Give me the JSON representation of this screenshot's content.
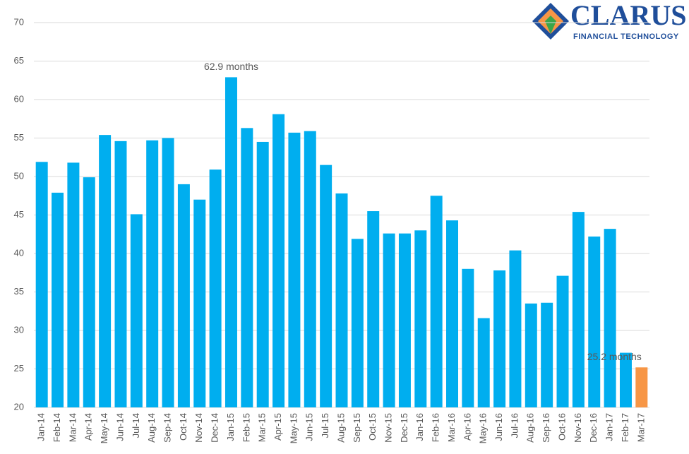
{
  "logo": {
    "name": "CLARUS",
    "tagline": "FINANCIAL TECHNOLOGY"
  },
  "chart_data": {
    "type": "bar",
    "categories": [
      "Jan-14",
      "Feb-14",
      "Mar-14",
      "Apr-14",
      "May-14",
      "Jun-14",
      "Jul-14",
      "Aug-14",
      "Sep-14",
      "Oct-14",
      "Nov-14",
      "Dec-14",
      "Jan-15",
      "Feb-15",
      "Mar-15",
      "Apr-15",
      "May-15",
      "Jun-15",
      "Jul-15",
      "Aug-15",
      "Sep-15",
      "Oct-15",
      "Nov-15",
      "Dec-15",
      "Jan-16",
      "Feb-16",
      "Mar-16",
      "Apr-16",
      "May-16",
      "Jun-16",
      "Jul-16",
      "Aug-16",
      "Sep-16",
      "Oct-16",
      "Nov-16",
      "Dec-16",
      "Jan-17",
      "Feb-17",
      "Mar-17"
    ],
    "values": [
      51.9,
      47.9,
      51.8,
      49.9,
      55.4,
      54.6,
      45.1,
      54.7,
      55.0,
      49.0,
      47.0,
      50.9,
      62.9,
      56.3,
      54.5,
      58.1,
      55.7,
      55.9,
      51.5,
      47.8,
      41.9,
      45.5,
      42.6,
      42.6,
      43.0,
      47.5,
      44.3,
      38.0,
      31.6,
      37.8,
      40.4,
      33.5,
      33.6,
      37.1,
      45.4,
      42.2,
      43.2,
      27.1,
      25.2
    ],
    "colors": [
      "#00aeef",
      "#00aeef",
      "#00aeef",
      "#00aeef",
      "#00aeef",
      "#00aeef",
      "#00aeef",
      "#00aeef",
      "#00aeef",
      "#00aeef",
      "#00aeef",
      "#00aeef",
      "#00aeef",
      "#00aeef",
      "#00aeef",
      "#00aeef",
      "#00aeef",
      "#00aeef",
      "#00aeef",
      "#00aeef",
      "#00aeef",
      "#00aeef",
      "#00aeef",
      "#00aeef",
      "#00aeef",
      "#00aeef",
      "#00aeef",
      "#00aeef",
      "#00aeef",
      "#00aeef",
      "#00aeef",
      "#00aeef",
      "#00aeef",
      "#00aeef",
      "#00aeef",
      "#00aeef",
      "#00aeef",
      "#00aeef",
      "#f79646"
    ],
    "annotations": [
      "62.9 months",
      "25.2 months"
    ],
    "ylim": [
      20,
      70
    ],
    "yticks": [
      20,
      25,
      30,
      35,
      40,
      45,
      50,
      55,
      60,
      65,
      70
    ],
    "grid": true
  }
}
